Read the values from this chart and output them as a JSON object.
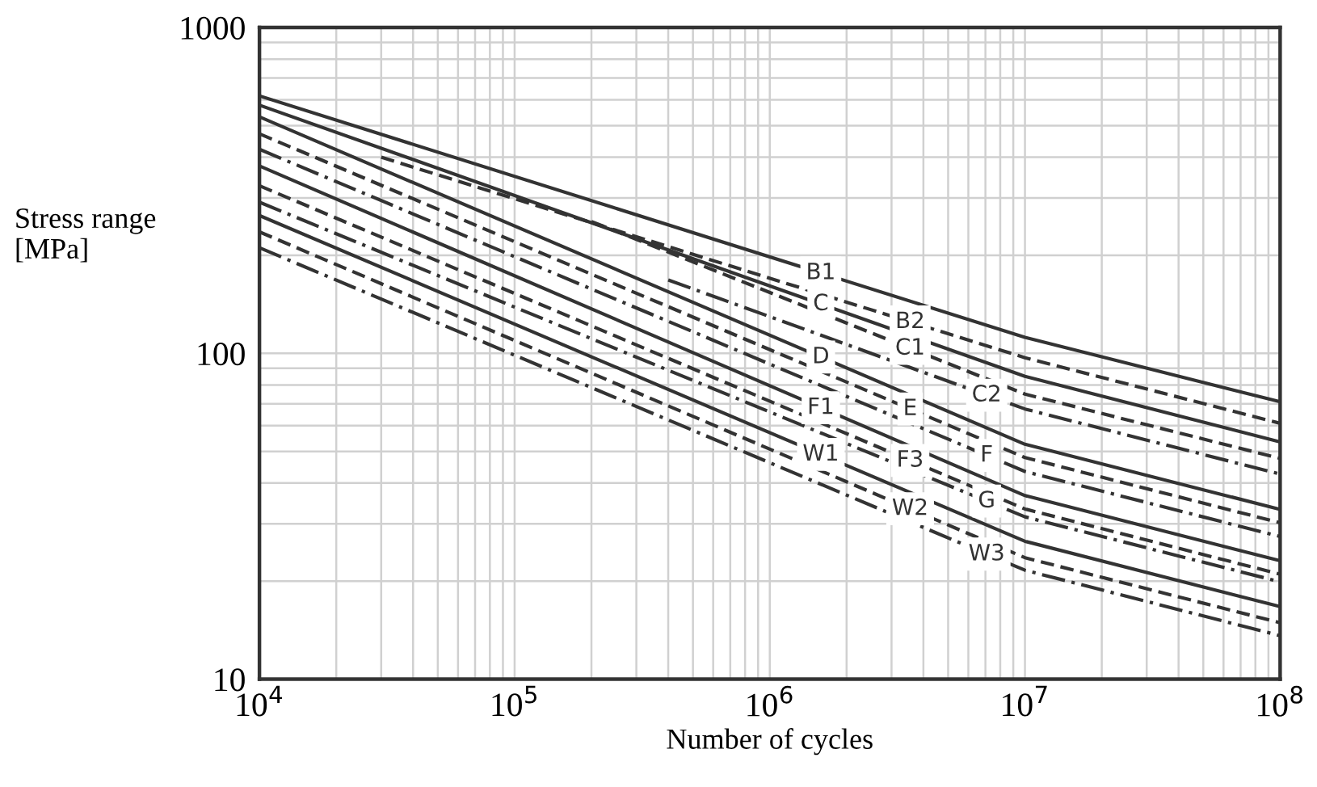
{
  "chart_data": {
    "type": "line",
    "xlabel": "Number of cycles",
    "ylabel": "Stress range\n[MPa]",
    "log": "xy",
    "xlim": [
      10000,
      100000000
    ],
    "ylim": [
      10,
      1000
    ],
    "xticks": [
      {
        "value": 10000,
        "label": "10$^{4}$"
      },
      {
        "value": 100000,
        "label": "10$^{5}$"
      },
      {
        "value": 1000000,
        "label": "10$^{6}$"
      },
      {
        "value": 10000000,
        "label": "10$^{7}$"
      },
      {
        "value": 100000000,
        "label": "10$^{8}$"
      }
    ],
    "yticks": [
      10,
      100,
      1000
    ],
    "grid": true,
    "legend": false,
    "marker": "none",
    "series": [
      {
        "name": "B1",
        "color": "#333333",
        "line_style": "solid",
        "x": [
          10000,
          10000000,
          100000000
        ],
        "values": [
          617,
          112,
          71
        ]
      },
      {
        "name": "B2",
        "color": "#333333",
        "line_style": "dashed",
        "x": [
          30000,
          10000000,
          100000000
        ],
        "values": [
          400,
          97,
          61
        ]
      },
      {
        "name": "C",
        "color": "#333333",
        "line_style": "solid",
        "x": [
          10000,
          10000000,
          100000000
        ],
        "values": [
          578,
          85,
          53.5
        ]
      },
      {
        "name": "C1",
        "color": "#333333",
        "line_style": "dashed",
        "x": [
          200000,
          10000000,
          100000000
        ],
        "values": [
          254,
          75,
          47.6
        ]
      },
      {
        "name": "C2",
        "color": "#333333",
        "line_style": "dashdot",
        "x": [
          400000,
          10000000,
          100000000
        ],
        "values": [
          168,
          67.5,
          42.6
        ]
      },
      {
        "name": "D",
        "color": "#333333",
        "line_style": "solid",
        "x": [
          10000,
          10000000,
          100000000
        ],
        "values": [
          532,
          52.6,
          33.2
        ]
      },
      {
        "name": "E",
        "color": "#333333",
        "line_style": "dashed",
        "x": [
          10000,
          10000000,
          100000000
        ],
        "values": [
          472,
          47.9,
          30.2
        ]
      },
      {
        "name": "F",
        "color": "#333333",
        "line_style": "dashdot",
        "x": [
          10000,
          10000000,
          100000000
        ],
        "values": [
          423,
          43.4,
          27.4
        ]
      },
      {
        "name": "F1",
        "color": "#333333",
        "line_style": "solid",
        "x": [
          10000,
          10000000,
          100000000
        ],
        "values": [
          376,
          36.6,
          23.1
        ]
      },
      {
        "name": "F3",
        "color": "#333333",
        "line_style": "dashed",
        "x": [
          10000,
          10000000,
          100000000
        ],
        "values": [
          327,
          33.3,
          21.0
        ]
      },
      {
        "name": "G",
        "color": "#333333",
        "line_style": "dashdot",
        "x": [
          10000,
          10000000,
          100000000
        ],
        "values": [
          291,
          31.5,
          19.9
        ]
      },
      {
        "name": "W1",
        "color": "#333333",
        "line_style": "solid",
        "x": [
          10000,
          10000000,
          100000000
        ],
        "values": [
          265,
          26.5,
          16.7
        ]
      },
      {
        "name": "W2",
        "color": "#333333",
        "line_style": "dashed",
        "x": [
          10000,
          10000000,
          100000000
        ],
        "values": [
          236,
          23.6,
          14.9
        ]
      },
      {
        "name": "W3",
        "color": "#333333",
        "line_style": "dashdot",
        "x": [
          10000,
          10000000,
          100000000
        ],
        "values": [
          211,
          21.6,
          13.6
        ]
      }
    ]
  }
}
